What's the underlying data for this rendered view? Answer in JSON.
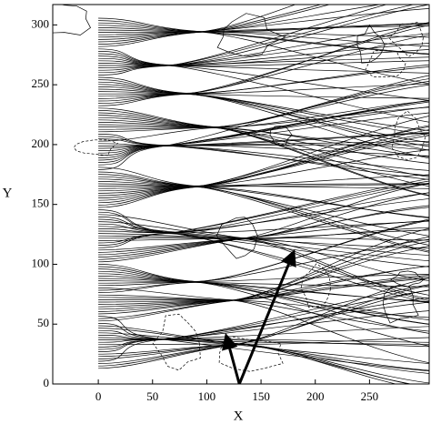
{
  "chart_data": {
    "type": "ray-plot",
    "xlabel": "X",
    "ylabel": "Y",
    "xlim": [
      -42,
      305
    ],
    "ylim": [
      0,
      317
    ],
    "xticks": [
      0,
      50,
      100,
      150,
      200,
      250
    ],
    "yticks": [
      0,
      50,
      100,
      150,
      200,
      250,
      300
    ],
    "arrows": [
      {
        "x": [
          130,
          118
        ],
        "y": [
          0,
          40
        ]
      },
      {
        "x": [
          130,
          180
        ],
        "y": [
          0,
          110
        ]
      }
    ]
  }
}
